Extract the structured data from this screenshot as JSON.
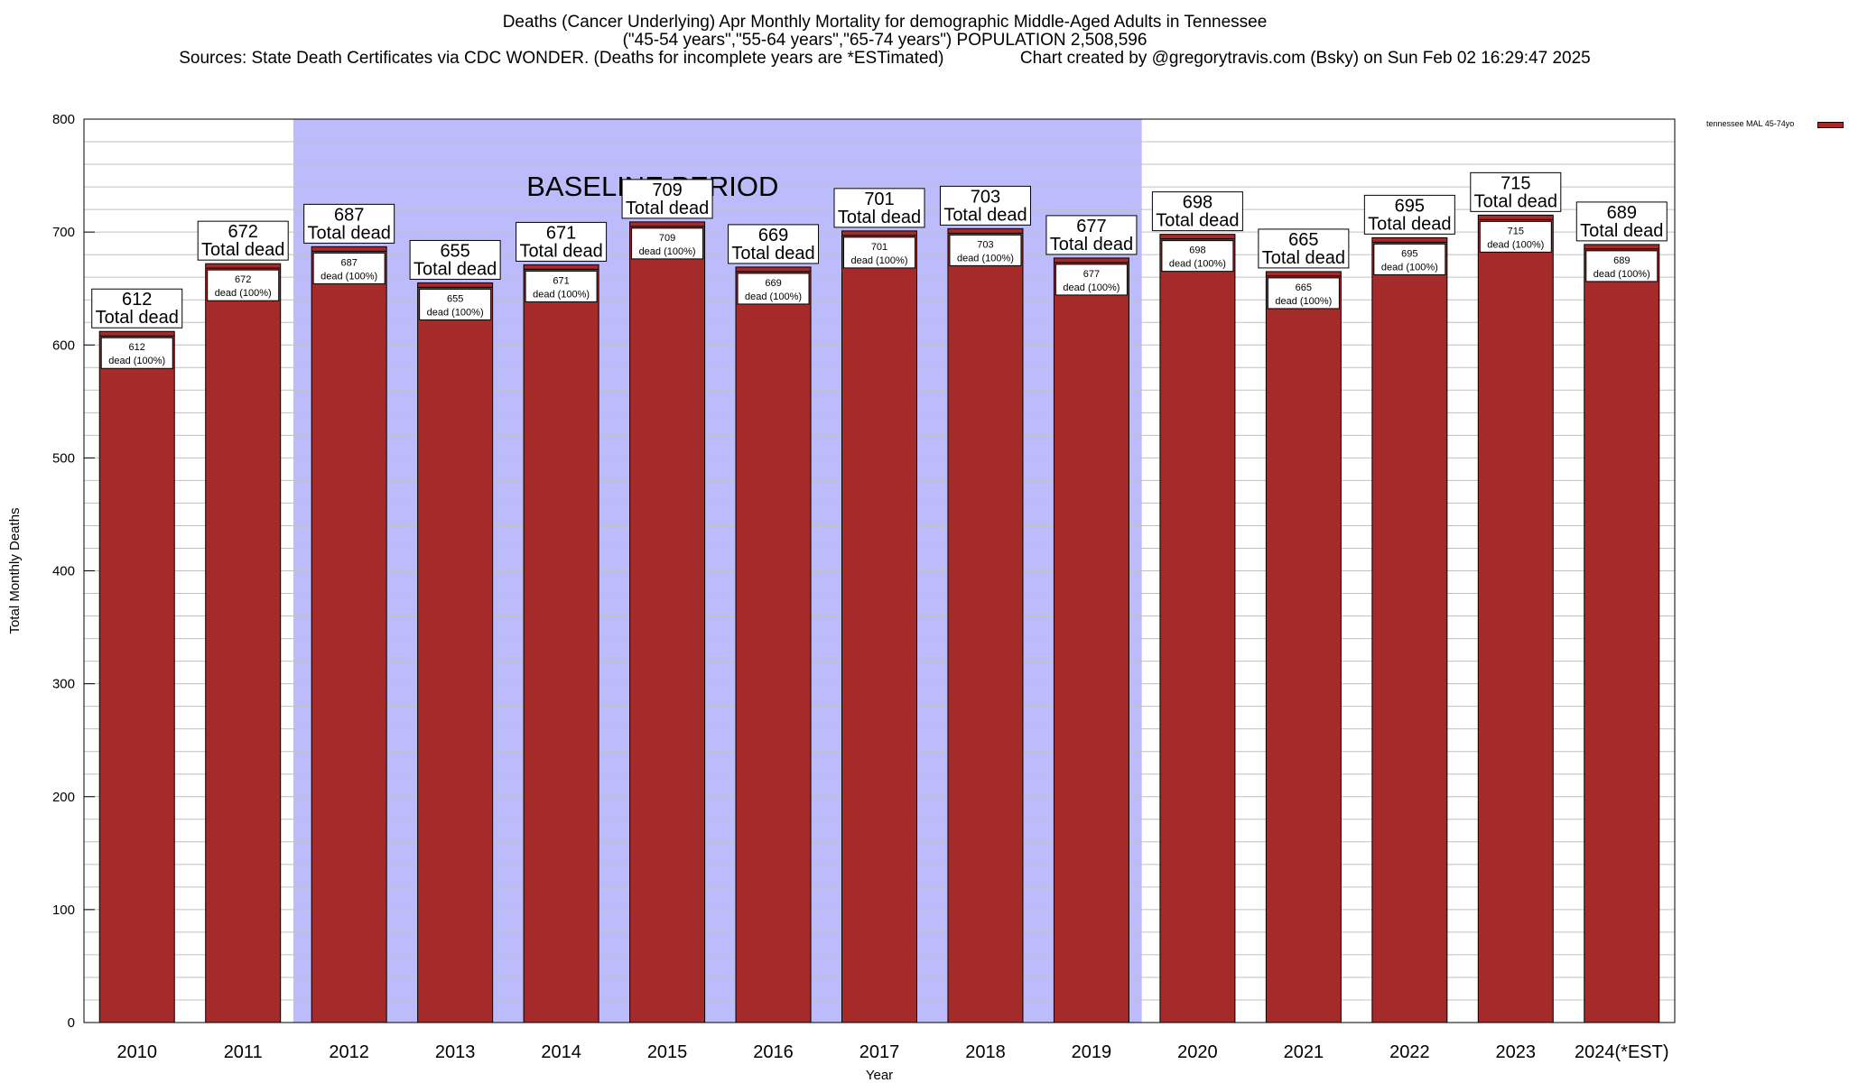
{
  "title": {
    "line1": "Deaths (Cancer Underlying) Apr Monthly Mortality for demographic Middle-Aged Adults in Tennessee",
    "line2": "(\"45-54 years\",\"55-64 years\",\"65-74 years\") POPULATION 2,508,596",
    "line3": "Sources: State Death Certificates via CDC WONDER. (Deaths for incomplete years are *ESTimated)                Chart created by @gregorytravis.com (Bsky) on Sun Feb 02 16:29:47 2025"
  },
  "chart_data": {
    "type": "bar",
    "categories": [
      "2010",
      "2011",
      "2012",
      "2013",
      "2014",
      "2015",
      "2016",
      "2017",
      "2018",
      "2019",
      "2020",
      "2021",
      "2022",
      "2023",
      "2024(*EST)"
    ],
    "series": [
      {
        "name": "tennessee MAL 45-74yo",
        "values": [
          612,
          672,
          687,
          655,
          671,
          709,
          669,
          701,
          703,
          677,
          698,
          665,
          695,
          715,
          689
        ]
      }
    ],
    "total_label": "Total dead",
    "inner_label_suffix": "dead (100%)",
    "baseline": {
      "label": "BASELINE PERIOD",
      "from": "2012",
      "to": "2019"
    },
    "xlabel": "Year",
    "ylabel": "Total Monthly Deaths",
    "ylim": [
      0,
      800
    ],
    "yticks": [
      0,
      100,
      200,
      300,
      400,
      500,
      600,
      700,
      800
    ],
    "grid": true,
    "legend_position": "top-right",
    "colors": {
      "bar": "#a52a2a",
      "baseline_band": "#bcbcfc",
      "grid": "#c0c0c0"
    }
  }
}
